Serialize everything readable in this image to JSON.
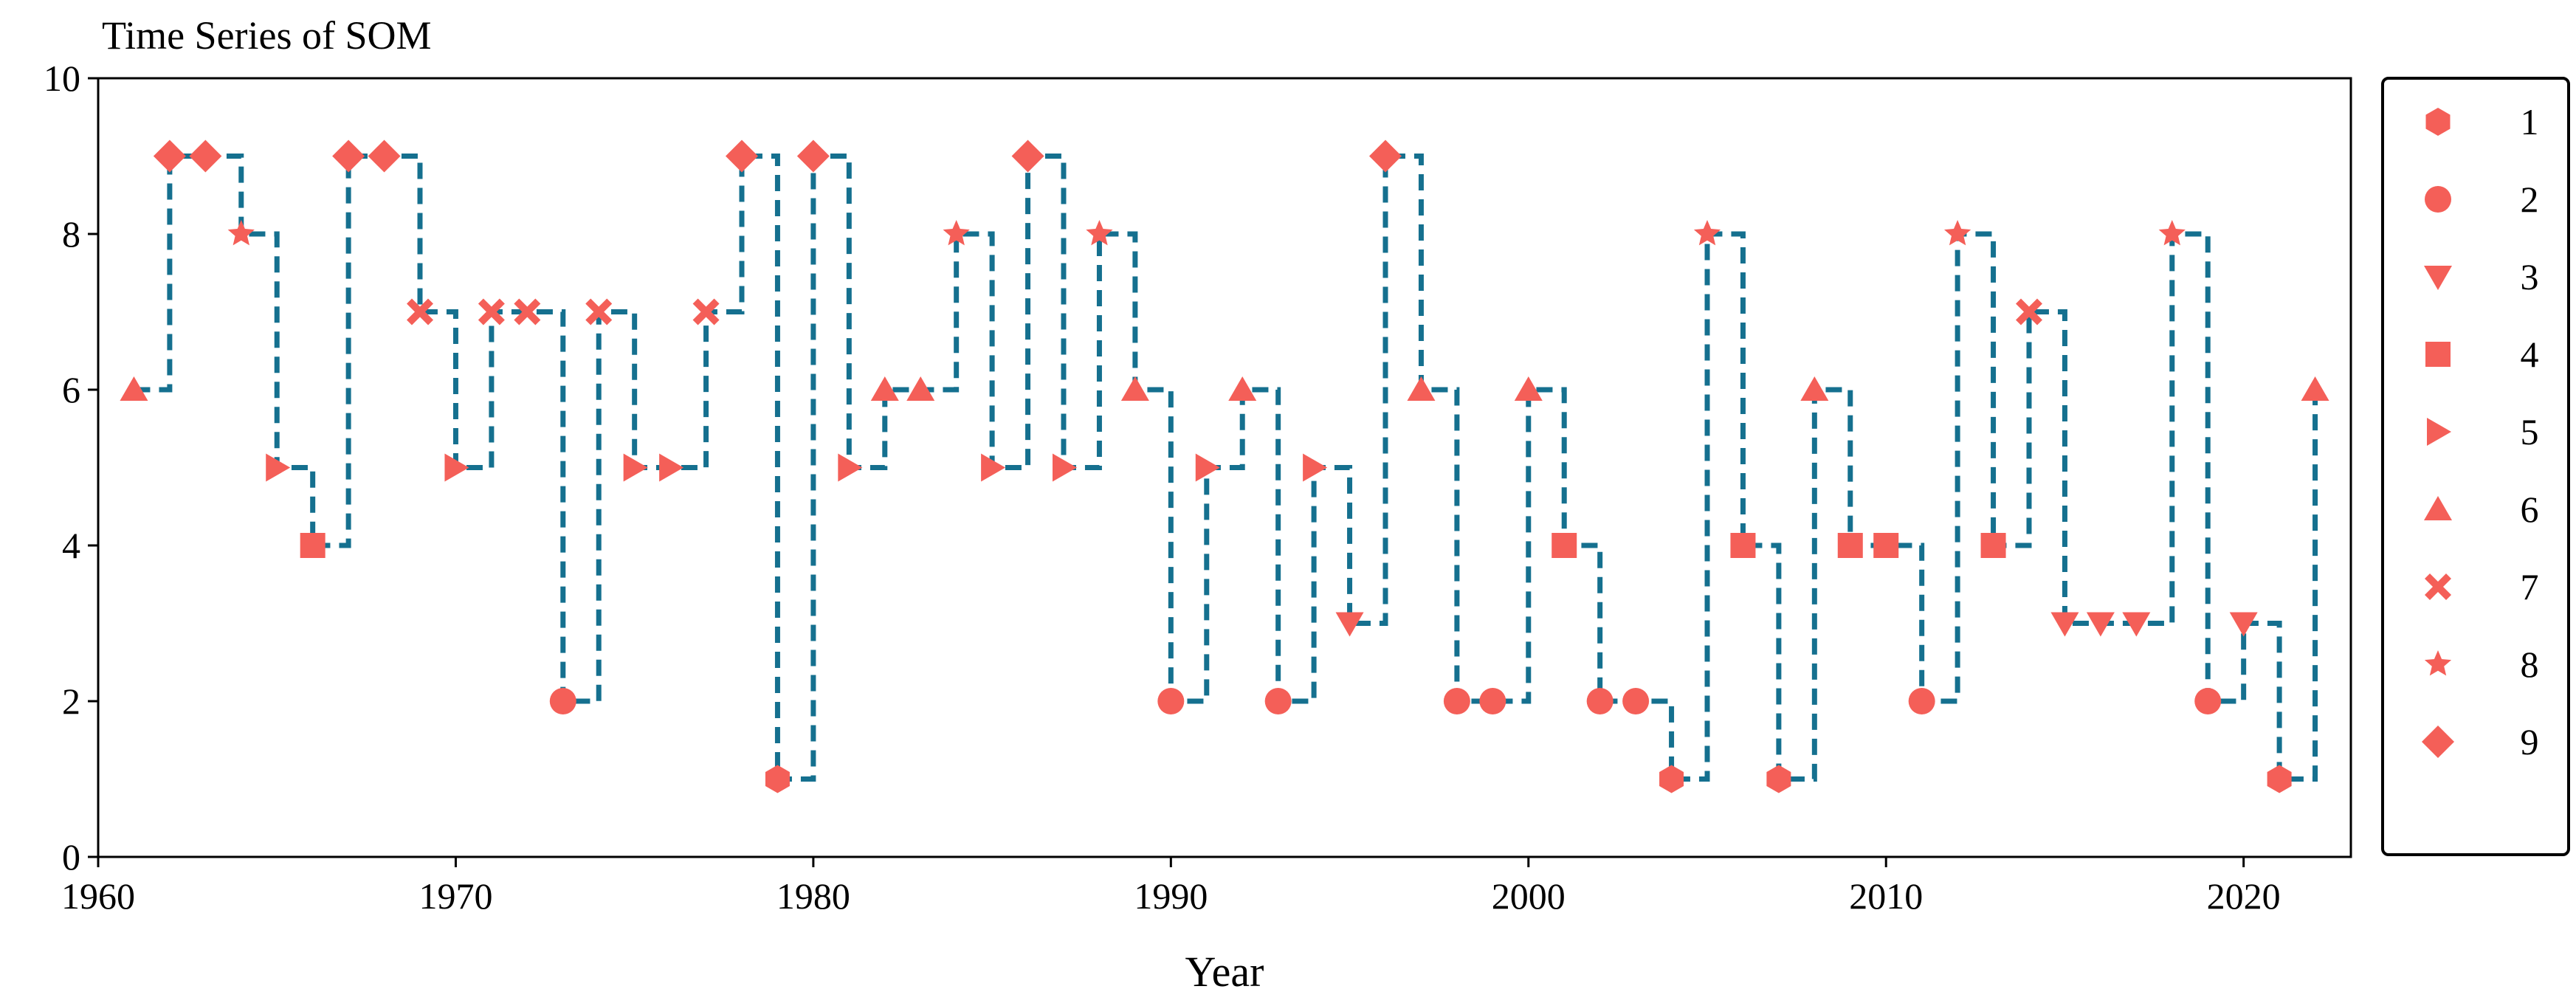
{
  "chart_data": {
    "type": "line",
    "title": "Time Series of SOM",
    "xlabel": "Year",
    "ylabel": "",
    "xlim": [
      1960,
      2023
    ],
    "ylim": [
      0,
      10
    ],
    "xticks": [
      "1960",
      "1970",
      "1980",
      "1990",
      "2000",
      "2010",
      "2020"
    ],
    "yticks": [
      "0",
      "2",
      "4",
      "6",
      "8",
      "10"
    ],
    "grid": false,
    "legend_position": "outside-right",
    "step_style": "dashed step (post)",
    "colors": {
      "line": "#15708f",
      "marker": "#f45f58"
    },
    "legend": [
      {
        "label": "1",
        "marker": "hexagon"
      },
      {
        "label": "2",
        "marker": "circle"
      },
      {
        "label": "3",
        "marker": "triangle-down"
      },
      {
        "label": "4",
        "marker": "square"
      },
      {
        "label": "5",
        "marker": "triangle-right"
      },
      {
        "label": "6",
        "marker": "triangle-up"
      },
      {
        "label": "7",
        "marker": "x"
      },
      {
        "label": "8",
        "marker": "star"
      },
      {
        "label": "9",
        "marker": "diamond"
      }
    ],
    "x": [
      1961,
      1962,
      1963,
      1964,
      1965,
      1966,
      1967,
      1968,
      1969,
      1970,
      1971,
      1972,
      1973,
      1974,
      1975,
      1976,
      1977,
      1978,
      1979,
      1980,
      1981,
      1982,
      1983,
      1984,
      1985,
      1986,
      1987,
      1988,
      1989,
      1990,
      1991,
      1992,
      1993,
      1994,
      1995,
      1996,
      1997,
      1998,
      1999,
      2000,
      2001,
      2002,
      2003,
      2004,
      2005,
      2006,
      2007,
      2008,
      2009,
      2010,
      2011,
      2012,
      2013,
      2014,
      2015,
      2016,
      2017,
      2018,
      2019,
      2020,
      2021,
      2022
    ],
    "y": [
      6,
      9,
      9,
      8,
      5,
      4,
      9,
      9,
      7,
      5,
      7,
      7,
      2,
      7,
      5,
      5,
      7,
      9,
      1,
      9,
      5,
      6,
      6,
      8,
      5,
      9,
      5,
      8,
      6,
      2,
      5,
      6,
      2,
      5,
      3,
      9,
      6,
      2,
      2,
      6,
      4,
      2,
      2,
      1,
      8,
      4,
      1,
      6,
      4,
      4,
      2,
      8,
      4,
      7,
      3,
      3,
      3,
      8,
      2,
      3,
      1,
      6
    ]
  }
}
